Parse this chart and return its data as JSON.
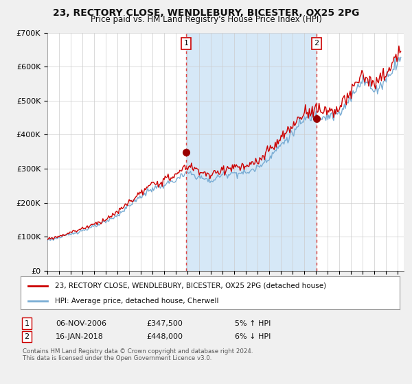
{
  "title": "23, RECTORY CLOSE, WENDLEBURY, BICESTER, OX25 2PG",
  "subtitle": "Price paid vs. HM Land Registry's House Price Index (HPI)",
  "legend_line1": "23, RECTORY CLOSE, WENDLEBURY, BICESTER, OX25 2PG (detached house)",
  "legend_line2": "HPI: Average price, detached house, Cherwell",
  "footnote1": "Contains HM Land Registry data © Crown copyright and database right 2024.",
  "footnote2": "This data is licensed under the Open Government Licence v3.0.",
  "transaction1_date_str": "06-NOV-2006",
  "transaction1_price_str": "£347,500",
  "transaction1_hpi_str": "5% ↑ HPI",
  "transaction2_date_str": "16-JAN-2018",
  "transaction2_price_str": "£448,000",
  "transaction2_hpi_str": "6% ↓ HPI",
  "transaction1_x": 2006.869,
  "transaction1_y": 347500,
  "transaction2_x": 2018.04,
  "transaction2_y": 448000,
  "xmin": 1995.0,
  "xmax": 2025.5,
  "ymin": 0,
  "ymax": 700000,
  "yticks": [
    0,
    100000,
    200000,
    300000,
    400000,
    500000,
    600000,
    700000
  ],
  "ytick_labels": [
    "£0",
    "£100K",
    "£200K",
    "£300K",
    "£400K",
    "£500K",
    "£600K",
    "£700K"
  ],
  "xticks": [
    1995,
    1996,
    1997,
    1998,
    1999,
    2000,
    2001,
    2002,
    2003,
    2004,
    2005,
    2006,
    2007,
    2008,
    2009,
    2010,
    2011,
    2012,
    2013,
    2014,
    2015,
    2016,
    2017,
    2018,
    2019,
    2020,
    2021,
    2022,
    2023,
    2024,
    2025
  ],
  "hpi_color": "#7aadd4",
  "price_color": "#cc0000",
  "marker_color": "#990000",
  "chart_bg": "#ffffff",
  "shade_color": "#d6e8f7",
  "grid_color": "#cccccc",
  "vline_color": "#dd4444",
  "fig_bg": "#f0f0f0"
}
